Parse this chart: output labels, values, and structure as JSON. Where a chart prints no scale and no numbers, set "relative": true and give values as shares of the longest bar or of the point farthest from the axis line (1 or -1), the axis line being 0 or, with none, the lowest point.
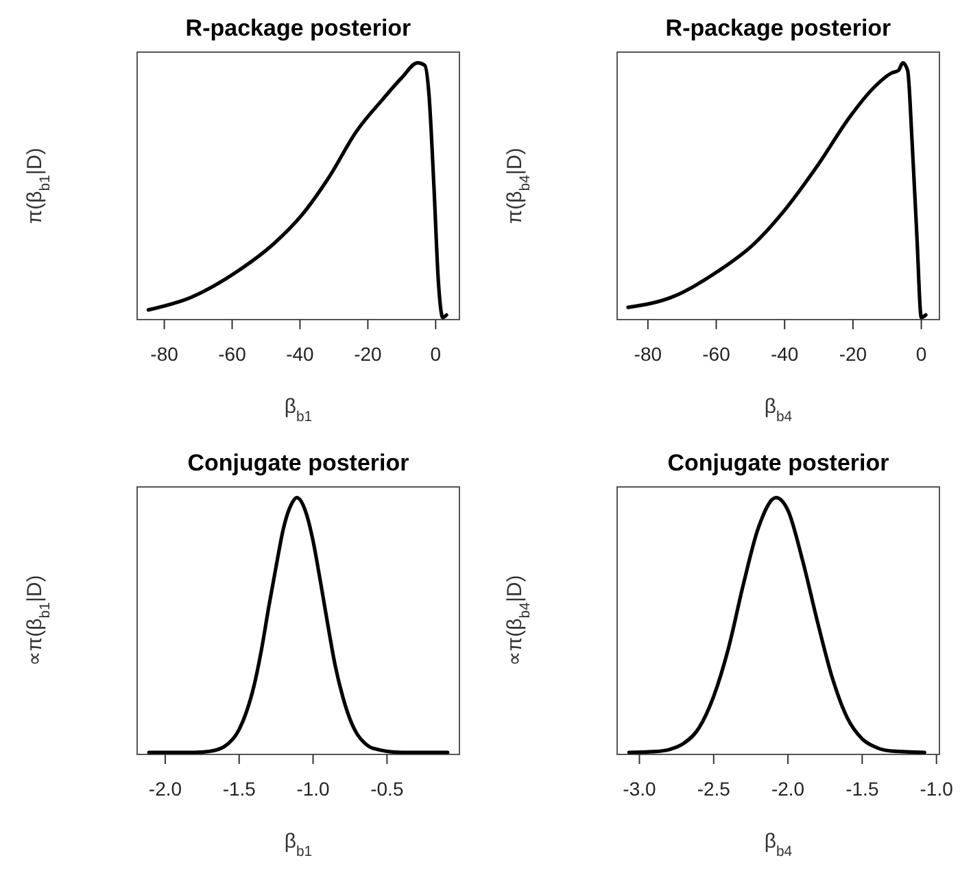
{
  "chart_data": [
    {
      "type": "line",
      "title": "R-package posterior",
      "xlabel": "β$_{b1}$",
      "ylabel": "π(β$_{b1}$|D)",
      "relative": true,
      "tick_labels": "x",
      "xlim": [
        -88,
        7
      ],
      "xticks": [
        -80,
        -60,
        -40,
        -20,
        0
      ],
      "series": [
        {
          "color": "#000000",
          "x": [
            -84.7,
            -72,
            -58.6,
            -47.7,
            -39.6,
            -31.5,
            -23.4,
            -15.4,
            -10.1,
            -5.3,
            -3.2,
            -2,
            -0.5,
            0.8,
            2.1,
            3.2
          ],
          "values": [
            0.03,
            0.08,
            0.18,
            0.29,
            0.4,
            0.55,
            0.73,
            0.86,
            0.94,
            1,
            0.99,
            0.88,
            0.51,
            0.14,
            0,
            0.01
          ]
        }
      ]
    },
    {
      "type": "line",
      "title": "R-package posterior",
      "xlabel": "β$_{b4}$",
      "ylabel": "π(β$_{b4}$|D)",
      "relative": true,
      "tick_labels": "x",
      "xlim": [
        -89,
        5.3
      ],
      "xticks": [
        -80,
        -60,
        -40,
        -20,
        0
      ],
      "series": [
        {
          "color": "#000000",
          "x": [
            -85.8,
            -73,
            -59.7,
            -48.9,
            -39.5,
            -30.2,
            -20.8,
            -14.1,
            -8.7,
            -6.7,
            -5.4,
            -4,
            -2.7,
            -1.3,
            0,
            1.3
          ],
          "values": [
            0.04,
            0.08,
            0.18,
            0.29,
            0.43,
            0.6,
            0.79,
            0.9,
            0.96,
            0.97,
            1,
            0.97,
            0.69,
            0.32,
            0,
            0.01
          ]
        }
      ]
    },
    {
      "type": "line",
      "title": "Conjugate posterior",
      "xlabel": "β$_{b1}$",
      "ylabel": "∝π(β$_{b1}$|D)",
      "relative": true,
      "tick_labels": "x",
      "xlim": [
        -2.19,
        -0.01
      ],
      "xticks": [
        {
          "value": -2,
          "label": "-2.0"
        },
        -1.5,
        {
          "value": -1,
          "label": "-1.0"
        },
        -0.5
      ],
      "series": [
        {
          "color": "#000000",
          "x": [
            -2.11,
            -1.8,
            -1.7,
            -1.6,
            -1.5,
            -1.45,
            -1.4,
            -1.35,
            -1.3,
            -1.25,
            -1.2,
            -1.15,
            -1.11,
            -1.05,
            -1,
            -0.95,
            -0.9,
            -0.85,
            -0.8,
            -0.75,
            -0.7,
            -0.65,
            -0.6,
            -0.4,
            -0.09
          ],
          "values": [
            0,
            0,
            0.004,
            0.023,
            0.09,
            0.16,
            0.26,
            0.4,
            0.57,
            0.73,
            0.88,
            0.97,
            1,
            0.945,
            0.83,
            0.67,
            0.5,
            0.34,
            0.22,
            0.13,
            0.07,
            0.036,
            0.017,
            0,
            0
          ]
        }
      ]
    },
    {
      "type": "line",
      "title": "Conjugate posterior",
      "xlabel": "β$_{b4}$",
      "ylabel": "∝π(β$_{b4}$|D)",
      "relative": true,
      "tick_labels": "x",
      "xlim": [
        -3.15,
        -0.98
      ],
      "xticks": [
        {
          "value": -3,
          "label": "-3.0"
        },
        -2.5,
        {
          "value": -2,
          "label": "-2.0"
        },
        -1.5,
        {
          "value": -1,
          "label": "-1.0"
        }
      ],
      "series": [
        {
          "color": "#000000",
          "x": [
            -3.07,
            -2.9,
            -2.8,
            -2.7,
            -2.6,
            -2.5,
            -2.4,
            -2.3,
            -2.2,
            -2.08,
            -2,
            -1.9,
            -1.8,
            -1.7,
            -1.6,
            -1.5,
            -1.4,
            -1.3,
            -1.08
          ],
          "values": [
            0,
            0.003,
            0.011,
            0.036,
            0.095,
            0.22,
            0.41,
            0.66,
            0.88,
            1,
            0.95,
            0.75,
            0.51,
            0.29,
            0.135,
            0.053,
            0.018,
            0.005,
            0
          ]
        }
      ]
    }
  ]
}
